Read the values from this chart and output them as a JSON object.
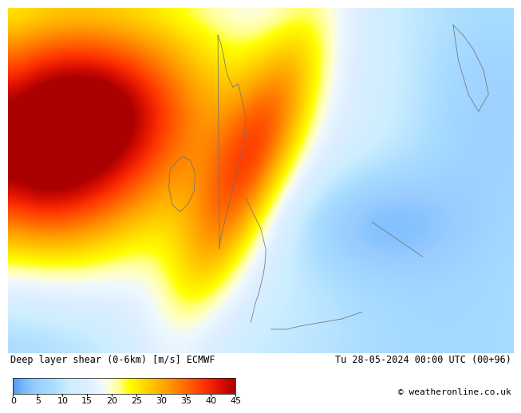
{
  "title_left": "Deep layer shear (0-6km) [m/s] ECMWF",
  "title_right": "Tu 28-05-2024 00:00 UTC (00+96)",
  "copyright": "© weatheronline.co.uk",
  "colorbar_ticks": [
    0,
    5,
    10,
    15,
    20,
    25,
    30,
    35,
    40,
    45
  ],
  "map_figsize": [
    6.34,
    4.9
  ],
  "map_dpi": 100,
  "colorbar_label_fontsize": 8,
  "title_fontsize": 8.5,
  "copyright_fontsize": 8,
  "cmap_stops": [
    [
      0.0,
      "#5599ee"
    ],
    [
      0.05,
      "#77bbff"
    ],
    [
      0.1,
      "#99ccff"
    ],
    [
      0.18,
      "#aaddff"
    ],
    [
      0.25,
      "#cceeff"
    ],
    [
      0.33,
      "#ddeeff"
    ],
    [
      0.4,
      "#eef8ff"
    ],
    [
      0.44,
      "#ffffcc"
    ],
    [
      0.48,
      "#ffff88"
    ],
    [
      0.52,
      "#ffff00"
    ],
    [
      0.58,
      "#ffdd00"
    ],
    [
      0.64,
      "#ffbb00"
    ],
    [
      0.7,
      "#ff9900"
    ],
    [
      0.78,
      "#ff6600"
    ],
    [
      0.86,
      "#ff3300"
    ],
    [
      0.93,
      "#dd1100"
    ],
    [
      1.0,
      "#aa0000"
    ]
  ]
}
